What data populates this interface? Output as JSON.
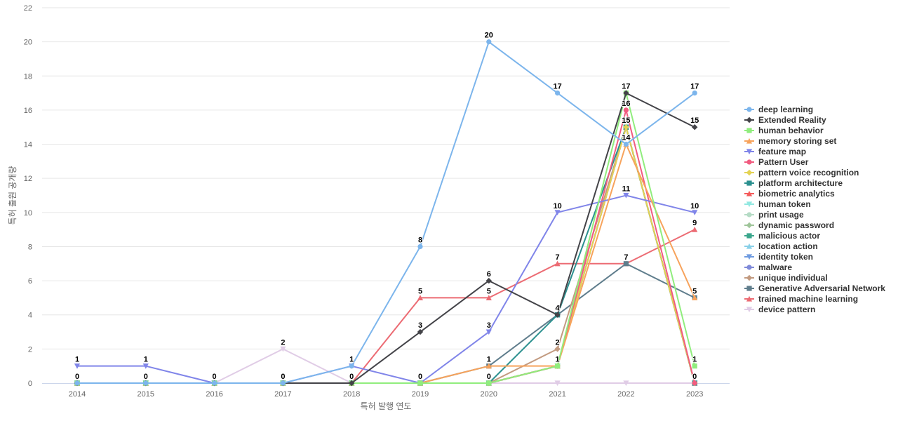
{
  "chart_data": {
    "type": "line",
    "xlabel": "특허 발행 연도",
    "ylabel": "특허 출원 공개량",
    "x": [
      "2014",
      "2015",
      "2016",
      "2017",
      "2018",
      "2019",
      "2020",
      "2021",
      "2022",
      "2023"
    ],
    "ylim": [
      0,
      22
    ],
    "yticks": [
      0,
      2,
      4,
      6,
      8,
      10,
      12,
      14,
      16,
      18,
      20,
      22
    ],
    "grid": "horizontal",
    "legend_position": "right",
    "series": [
      {
        "name": "deep learning",
        "color": "#7cb5ec",
        "marker": "circle",
        "values": [
          0,
          0,
          0,
          0,
          1,
          8,
          20,
          17,
          14,
          17
        ]
      },
      {
        "name": "Extended Reality",
        "color": "#434348",
        "marker": "diamond",
        "values": [
          0,
          0,
          0,
          0,
          0,
          3,
          6,
          4,
          17,
          15
        ]
      },
      {
        "name": "human behavior",
        "color": "#90ed7d",
        "marker": "square",
        "values": [
          0,
          0,
          0,
          0,
          0,
          0,
          0,
          1,
          17,
          1
        ]
      },
      {
        "name": "memory storing set",
        "color": "#f7a35c",
        "marker": "triangle",
        "values": [
          0,
          0,
          0,
          0,
          0,
          0,
          1,
          1,
          14,
          5
        ]
      },
      {
        "name": "feature map",
        "color": "#8085e9",
        "marker": "triangle-down",
        "values": [
          1,
          1,
          0,
          0,
          1,
          0,
          3,
          10,
          11,
          10
        ]
      },
      {
        "name": "Pattern User",
        "color": "#f15c80",
        "marker": "circle",
        "values": [
          0,
          0,
          0,
          0,
          0,
          0,
          0,
          1,
          16,
          0
        ]
      },
      {
        "name": "pattern voice recognition",
        "color": "#e4d354",
        "marker": "diamond",
        "values": [
          0,
          0,
          0,
          0,
          0,
          0,
          0,
          1,
          15,
          0
        ]
      },
      {
        "name": "platform architecture",
        "color": "#2b908f",
        "marker": "square",
        "values": [
          0,
          0,
          0,
          0,
          0,
          0,
          0,
          4,
          15,
          0
        ]
      },
      {
        "name": "biometric analytics",
        "color": "#f45b5b",
        "marker": "triangle",
        "values": [
          0,
          0,
          0,
          0,
          0,
          0,
          0,
          1,
          15,
          0
        ]
      },
      {
        "name": "human token",
        "color": "#91e8e1",
        "marker": "triangle-down",
        "values": [
          0,
          0,
          0,
          0,
          0,
          0,
          0,
          1,
          15,
          0
        ]
      },
      {
        "name": "print usage",
        "color": "#b5dbc5",
        "marker": "circle",
        "values": [
          0,
          0,
          0,
          0,
          0,
          0,
          0,
          1,
          15,
          0
        ]
      },
      {
        "name": "dynamic password",
        "color": "#9fc59a",
        "marker": "diamond",
        "values": [
          0,
          0,
          0,
          0,
          0,
          0,
          0,
          1,
          15,
          0
        ]
      },
      {
        "name": "malicious actor",
        "color": "#3aa68c",
        "marker": "square",
        "values": [
          0,
          0,
          0,
          0,
          0,
          0,
          0,
          1,
          15,
          0
        ]
      },
      {
        "name": "location action",
        "color": "#88d0e8",
        "marker": "triangle",
        "values": [
          0,
          0,
          0,
          0,
          0,
          0,
          0,
          1,
          15,
          0
        ]
      },
      {
        "name": "identity token",
        "color": "#6f9be0",
        "marker": "triangle-down",
        "values": [
          0,
          0,
          0,
          0,
          0,
          0,
          0,
          1,
          15,
          0
        ]
      },
      {
        "name": "malware",
        "color": "#7f8ad9",
        "marker": "circle",
        "values": [
          0,
          0,
          0,
          0,
          0,
          0,
          0,
          1,
          15,
          0
        ]
      },
      {
        "name": "unique individual",
        "color": "#c29a80",
        "marker": "diamond",
        "values": [
          0,
          0,
          0,
          0,
          0,
          0,
          0,
          2,
          15,
          0
        ]
      },
      {
        "name": "Generative Adversarial Network",
        "color": "#5f7d8c",
        "marker": "square",
        "values": [
          0,
          0,
          0,
          0,
          0,
          0,
          1,
          4,
          7,
          5
        ]
      },
      {
        "name": "trained machine learning",
        "color": "#ec6b73",
        "marker": "triangle",
        "values": [
          0,
          0,
          0,
          0,
          0,
          5,
          5,
          7,
          7,
          9
        ]
      },
      {
        "name": "device pattern",
        "color": "#e0cce6",
        "marker": "triangle-down",
        "values": [
          0,
          0,
          0,
          2,
          0,
          0,
          0,
          0,
          0,
          0
        ]
      }
    ],
    "data_labels": [
      {
        "x": "2014",
        "text": "1",
        "y": 1
      },
      {
        "x": "2014",
        "text": "0",
        "y": 0
      },
      {
        "x": "2015",
        "text": "1",
        "y": 1
      },
      {
        "x": "2015",
        "text": "0",
        "y": 0
      },
      {
        "x": "2016",
        "text": "0",
        "y": 0
      },
      {
        "x": "2017",
        "text": "2",
        "y": 2
      },
      {
        "x": "2017",
        "text": "0",
        "y": 0
      },
      {
        "x": "2018",
        "text": "1",
        "y": 1
      },
      {
        "x": "2018",
        "text": "0",
        "y": 0
      },
      {
        "x": "2019",
        "text": "8",
        "y": 8
      },
      {
        "x": "2019",
        "text": "5",
        "y": 5
      },
      {
        "x": "2019",
        "text": "3",
        "y": 3
      },
      {
        "x": "2019",
        "text": "0",
        "y": 0
      },
      {
        "x": "2020",
        "text": "20",
        "y": 20
      },
      {
        "x": "2020",
        "text": "6",
        "y": 6
      },
      {
        "x": "2020",
        "text": "5",
        "y": 5
      },
      {
        "x": "2020",
        "text": "3",
        "y": 3
      },
      {
        "x": "2020",
        "text": "1",
        "y": 1
      },
      {
        "x": "2020",
        "text": "0",
        "y": 0
      },
      {
        "x": "2021",
        "text": "17",
        "y": 17
      },
      {
        "x": "2021",
        "text": "10",
        "y": 10
      },
      {
        "x": "2021",
        "text": "7",
        "y": 7
      },
      {
        "x": "2021",
        "text": "4",
        "y": 4
      },
      {
        "x": "2021",
        "text": "2",
        "y": 2
      },
      {
        "x": "2021",
        "text": "1",
        "y": 1
      },
      {
        "x": "2022",
        "text": "17",
        "y": 17
      },
      {
        "x": "2022",
        "text": "16",
        "y": 16
      },
      {
        "x": "2022",
        "text": "15",
        "y": 15
      },
      {
        "x": "2022",
        "text": "14",
        "y": 14
      },
      {
        "x": "2022",
        "text": "11",
        "y": 11
      },
      {
        "x": "2022",
        "text": "7",
        "y": 7
      },
      {
        "x": "2023",
        "text": "17",
        "y": 17
      },
      {
        "x": "2023",
        "text": "15",
        "y": 15
      },
      {
        "x": "2023",
        "text": "10",
        "y": 10
      },
      {
        "x": "2023",
        "text": "9",
        "y": 9
      },
      {
        "x": "2023",
        "text": "5",
        "y": 5
      },
      {
        "x": "2023",
        "text": "1",
        "y": 1
      },
      {
        "x": "2023",
        "text": "0",
        "y": 0
      }
    ]
  }
}
